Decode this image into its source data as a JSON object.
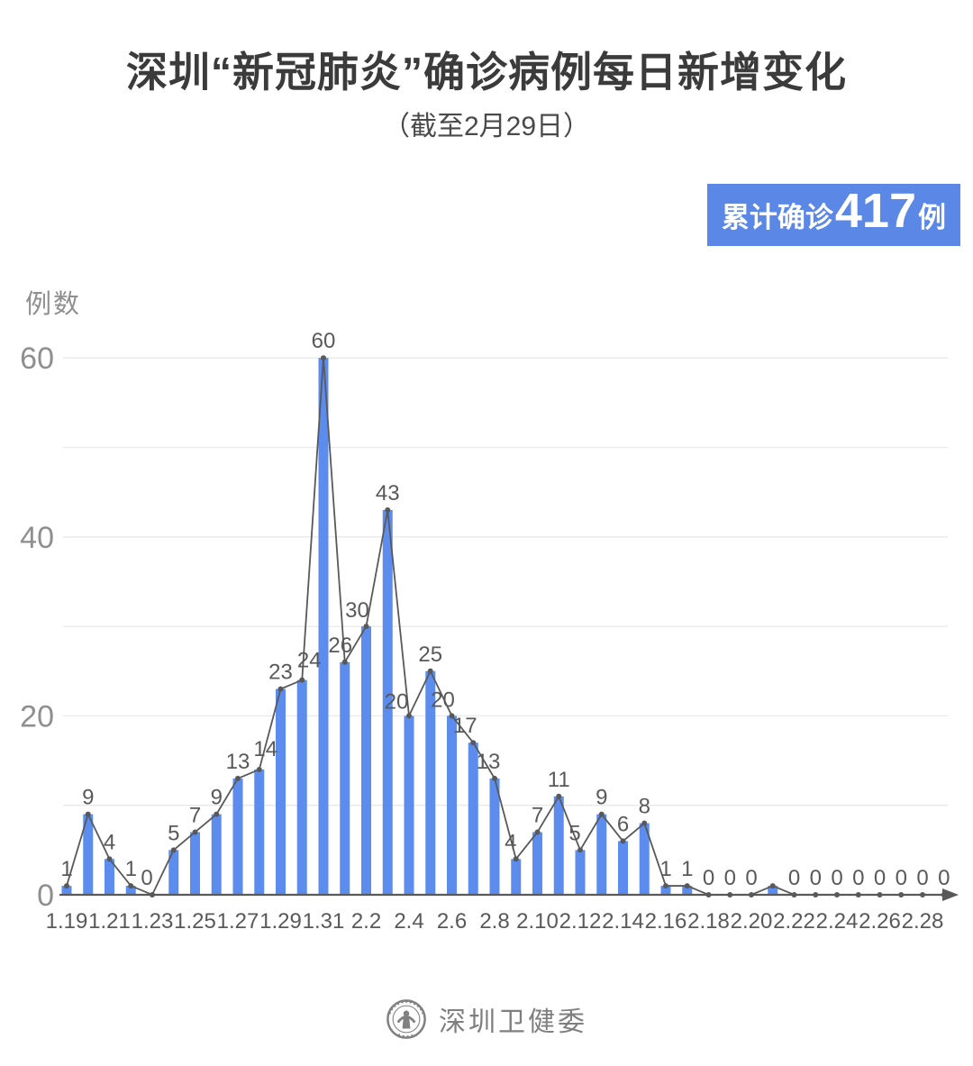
{
  "badge": {
    "prefix": "累计确诊",
    "value": "417",
    "suffix": "例"
  },
  "footer": {
    "brand": "深圳卫健委"
  },
  "colors": {
    "bar": "#5c8dee",
    "line": "#595959",
    "dot": "#595959",
    "badge_bg": "#5b87e6",
    "grid": "#e9e9e9",
    "axis": "#595959",
    "value_label": "#595959",
    "x_tick": "#595959",
    "y_tick": "#8f8f8f",
    "title": "#3b3b3b",
    "footer": "#7f7f7f"
  },
  "chart_data": {
    "type": "bar",
    "overlay": "line",
    "title": "深圳“新冠肺炎”确诊病例每日新增变化",
    "subtitle": "（截至2月29日）",
    "ylabel": "例数",
    "xlabel": "",
    "ylim": [
      0,
      60
    ],
    "grid": true,
    "legend": false,
    "categories": [
      "1.19",
      "1.20",
      "1.21",
      "1.22",
      "1.23",
      "1.24",
      "1.25",
      "1.26",
      "1.27",
      "1.28",
      "1.29",
      "1.30",
      "1.31",
      "2.1",
      "2.2",
      "2.3",
      "2.4",
      "2.5",
      "2.6",
      "2.7",
      "2.8",
      "2.9",
      "2.10",
      "2.11",
      "2.12",
      "2.13",
      "2.14",
      "2.15",
      "2.16",
      "2.17",
      "2.18",
      "2.19",
      "2.20",
      "2.21",
      "2.22",
      "2.23",
      "2.24",
      "2.25",
      "2.26",
      "2.27",
      "2.28",
      "2.29"
    ],
    "values": [
      1,
      9,
      4,
      1,
      0,
      5,
      7,
      9,
      13,
      14,
      23,
      24,
      60,
      26,
      30,
      43,
      20,
      25,
      20,
      17,
      13,
      4,
      7,
      11,
      5,
      9,
      6,
      8,
      1,
      1,
      0,
      0,
      0,
      1,
      0,
      0,
      0,
      0,
      0,
      0,
      0,
      0
    ],
    "value_labels": [
      "1",
      "9",
      "4",
      "1",
      "0",
      "5",
      "7",
      "9",
      "13",
      "14",
      "23",
      "24",
      "60",
      "26",
      "30",
      "43",
      "20",
      "25",
      "20",
      "17",
      "13",
      "4",
      "7",
      "11",
      "5",
      "9",
      "6",
      "8",
      "1",
      "1",
      "0",
      "0",
      "0",
      "",
      "0",
      "0",
      "0",
      "0",
      "0",
      "0",
      "0",
      "0"
    ],
    "x_tick_labels": [
      "1.19",
      "1.21",
      "1.23",
      "1.25",
      "1.27",
      "1.29",
      "1.31",
      "2.2",
      "2.4",
      "2.6",
      "2.8",
      "2.10",
      "2.12",
      "2.14",
      "2.16",
      "2.18",
      "2.20",
      "2.22",
      "2.24",
      "2.26",
      "2.28"
    ],
    "yticks_labeled": [
      0,
      20,
      40,
      60
    ],
    "gridline_values": [
      10,
      20,
      30,
      40,
      50,
      60
    ],
    "cumulative_total": 417
  }
}
